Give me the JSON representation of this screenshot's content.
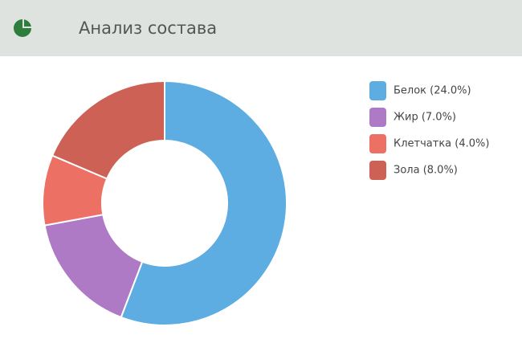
{
  "chart_data": {
    "type": "donut",
    "title": "Анализ состава",
    "categories": [
      "Белок (24.0%)",
      "Жир (7.0%)",
      "Клетчатка (4.0%)",
      "Зола (8.0%)"
    ],
    "values": [
      24.0,
      7.0,
      4.0,
      8.0
    ],
    "colors": [
      "#5dade2",
      "#af7ac5",
      "#ec7063",
      "#cd6155"
    ],
    "legend": "right"
  }
}
